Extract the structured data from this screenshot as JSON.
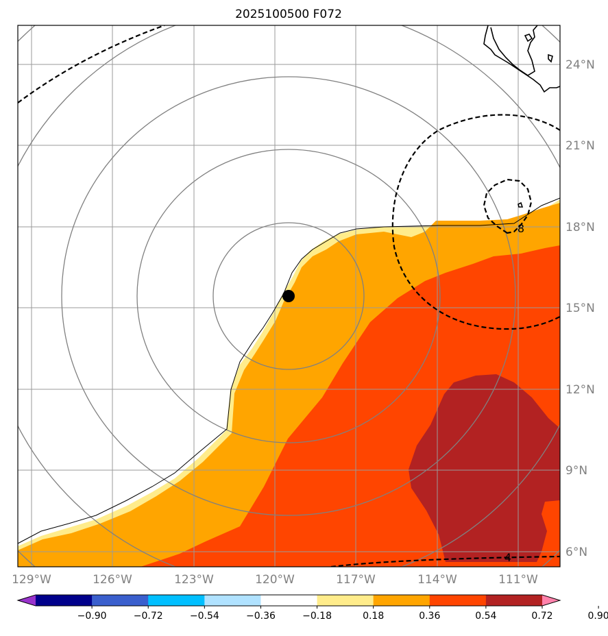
{
  "title": "2025100500 F072",
  "map": {
    "lon_labels": [
      "129°W",
      "126°W",
      "123°W",
      "120°W",
      "117°W",
      "114°W",
      "111°W"
    ],
    "lat_labels": [
      "24°N",
      "21°N",
      "18°N",
      "15°N",
      "12°N",
      "9°N",
      "6°N"
    ],
    "contour_labels": [
      "8",
      "4"
    ],
    "storm_center": {
      "lon": -119.5,
      "lat": 15.5
    }
  },
  "colorbar": {
    "ticks": [
      "−0.90",
      "−0.72",
      "−0.54",
      "−0.36",
      "−0.18",
      "0.18",
      "0.36",
      "0.54",
      "0.72",
      "0.90"
    ],
    "colors": [
      "#9933cc",
      "#00008b",
      "#3a5fcd",
      "#00bfff",
      "#b0e2ff",
      "#ffffff",
      "#ffec8b",
      "#ffa500",
      "#ff4500",
      "#b22222",
      "#ff82ab"
    ]
  }
}
